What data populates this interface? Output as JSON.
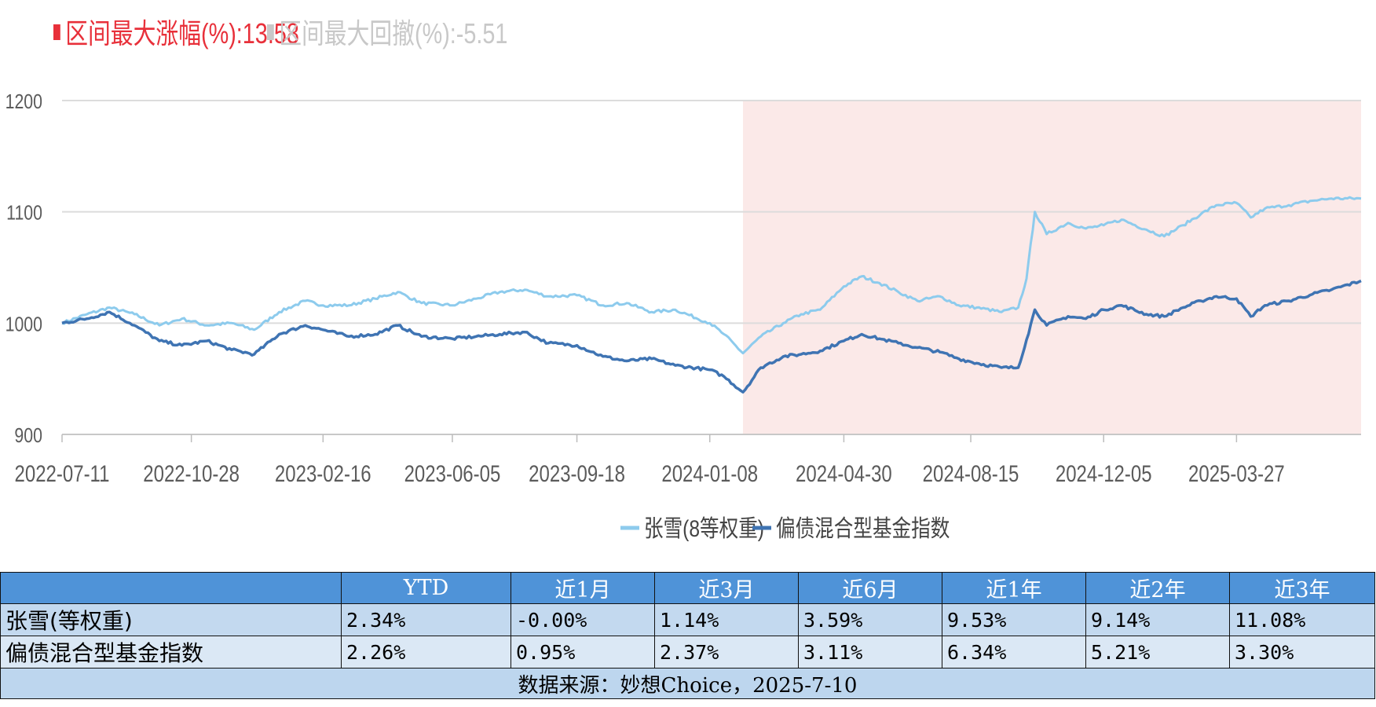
{
  "stats": {
    "max_rise_label": "区间最大涨幅(%):13.58",
    "max_drawdown_label": "区间最大回撤(%):-5.51",
    "max_rise_color": "#e8303a",
    "max_drawdown_color": "#c8c8c8"
  },
  "chart_data": {
    "type": "line",
    "title": "",
    "xlabel": "",
    "ylabel": "",
    "ylim": [
      900,
      1200
    ],
    "yticks": [
      "900",
      "1000",
      "1100",
      "1200"
    ],
    "xticks": [
      "2022-07-11",
      "2022-10-28",
      "2023-02-16",
      "2023-06-05",
      "2023-09-18",
      "2024-01-08",
      "2024-04-30",
      "2024-08-15",
      "2024-12-05",
      "2025-03-27"
    ],
    "x_range": [
      "2022-07-11",
      "2025-07-10"
    ],
    "grid": "horizontal",
    "legend_position": "bottom",
    "highlight_region": {
      "from": "2024-02-05",
      "to": "2025-07-10",
      "color": "#fbe9e8"
    },
    "series": [
      {
        "name": "张雪(8等权重)",
        "color": "#8dcbed",
        "points": [
          [
            "2022-07-11",
            1000
          ],
          [
            "2022-08-01",
            1008
          ],
          [
            "2022-08-20",
            1014
          ],
          [
            "2022-09-10",
            1008
          ],
          [
            "2022-10-01",
            998
          ],
          [
            "2022-10-20",
            1004
          ],
          [
            "2022-11-10",
            998
          ],
          [
            "2022-12-01",
            1000
          ],
          [
            "2022-12-20",
            994
          ],
          [
            "2023-01-10",
            1010
          ],
          [
            "2023-02-01",
            1020
          ],
          [
            "2023-02-16",
            1016
          ],
          [
            "2023-03-10",
            1016
          ],
          [
            "2023-04-01",
            1022
          ],
          [
            "2023-04-20",
            1028
          ],
          [
            "2023-05-10",
            1018
          ],
          [
            "2023-06-05",
            1016
          ],
          [
            "2023-06-25",
            1022
          ],
          [
            "2023-07-15",
            1028
          ],
          [
            "2023-08-05",
            1030
          ],
          [
            "2023-08-25",
            1024
          ],
          [
            "2023-09-18",
            1025
          ],
          [
            "2023-10-10",
            1016
          ],
          [
            "2023-10-30",
            1018
          ],
          [
            "2023-11-20",
            1010
          ],
          [
            "2023-12-10",
            1012
          ],
          [
            "2024-01-08",
            1000
          ],
          [
            "2024-01-20",
            990
          ],
          [
            "2024-02-05",
            973
          ],
          [
            "2024-02-20",
            988
          ],
          [
            "2024-03-10",
            1000
          ],
          [
            "2024-03-25",
            1008
          ],
          [
            "2024-04-10",
            1012
          ],
          [
            "2024-04-30",
            1033
          ],
          [
            "2024-05-15",
            1042
          ],
          [
            "2024-05-30",
            1036
          ],
          [
            "2024-06-15",
            1028
          ],
          [
            "2024-07-01",
            1020
          ],
          [
            "2024-07-20",
            1024
          ],
          [
            "2024-08-05",
            1016
          ],
          [
            "2024-08-20",
            1014
          ],
          [
            "2024-09-10",
            1010
          ],
          [
            "2024-09-24",
            1014
          ],
          [
            "2024-10-01",
            1040
          ],
          [
            "2024-10-08",
            1100
          ],
          [
            "2024-10-18",
            1080
          ],
          [
            "2024-11-05",
            1090
          ],
          [
            "2024-11-20",
            1085
          ],
          [
            "2024-12-05",
            1088
          ],
          [
            "2024-12-20",
            1093
          ],
          [
            "2025-01-10",
            1084
          ],
          [
            "2025-01-25",
            1078
          ],
          [
            "2025-02-10",
            1088
          ],
          [
            "2025-02-25",
            1098
          ],
          [
            "2025-03-10",
            1106
          ],
          [
            "2025-03-27",
            1108
          ],
          [
            "2025-04-08",
            1095
          ],
          [
            "2025-04-20",
            1103
          ],
          [
            "2025-05-10",
            1106
          ],
          [
            "2025-05-30",
            1110
          ],
          [
            "2025-06-15",
            1112
          ],
          [
            "2025-07-10",
            1112
          ]
        ]
      },
      {
        "name": "偏债混合型基金指数",
        "color": "#3f74b3",
        "points": [
          [
            "2022-07-11",
            1000
          ],
          [
            "2022-08-01",
            1004
          ],
          [
            "2022-08-20",
            1010
          ],
          [
            "2022-09-10",
            998
          ],
          [
            "2022-10-01",
            984
          ],
          [
            "2022-10-20",
            980
          ],
          [
            "2022-11-10",
            984
          ],
          [
            "2022-12-01",
            976
          ],
          [
            "2022-12-20",
            972
          ],
          [
            "2023-01-10",
            990
          ],
          [
            "2023-02-01",
            998
          ],
          [
            "2023-02-16",
            994
          ],
          [
            "2023-03-10",
            988
          ],
          [
            "2023-04-01",
            990
          ],
          [
            "2023-04-20",
            998
          ],
          [
            "2023-05-10",
            988
          ],
          [
            "2023-06-05",
            986
          ],
          [
            "2023-06-25",
            988
          ],
          [
            "2023-07-15",
            990
          ],
          [
            "2023-08-05",
            992
          ],
          [
            "2023-08-25",
            982
          ],
          [
            "2023-09-18",
            980
          ],
          [
            "2023-10-10",
            970
          ],
          [
            "2023-10-30",
            966
          ],
          [
            "2023-11-20",
            968
          ],
          [
            "2023-12-10",
            962
          ],
          [
            "2024-01-08",
            958
          ],
          [
            "2024-01-20",
            952
          ],
          [
            "2024-02-05",
            938
          ],
          [
            "2024-02-20",
            960
          ],
          [
            "2024-03-10",
            970
          ],
          [
            "2024-03-25",
            972
          ],
          [
            "2024-04-10",
            975
          ],
          [
            "2024-04-30",
            984
          ],
          [
            "2024-05-15",
            990
          ],
          [
            "2024-05-30",
            986
          ],
          [
            "2024-06-15",
            982
          ],
          [
            "2024-07-01",
            978
          ],
          [
            "2024-07-20",
            974
          ],
          [
            "2024-08-05",
            968
          ],
          [
            "2024-08-20",
            964
          ],
          [
            "2024-09-10",
            960
          ],
          [
            "2024-09-24",
            960
          ],
          [
            "2024-10-01",
            985
          ],
          [
            "2024-10-08",
            1012
          ],
          [
            "2024-10-18",
            998
          ],
          [
            "2024-11-05",
            1006
          ],
          [
            "2024-11-20",
            1004
          ],
          [
            "2024-12-05",
            1012
          ],
          [
            "2024-12-20",
            1016
          ],
          [
            "2025-01-10",
            1008
          ],
          [
            "2025-01-25",
            1006
          ],
          [
            "2025-02-10",
            1014
          ],
          [
            "2025-02-25",
            1020
          ],
          [
            "2025-03-10",
            1024
          ],
          [
            "2025-03-27",
            1022
          ],
          [
            "2025-04-08",
            1006
          ],
          [
            "2025-04-20",
            1016
          ],
          [
            "2025-05-10",
            1020
          ],
          [
            "2025-05-30",
            1026
          ],
          [
            "2025-06-15",
            1030
          ],
          [
            "2025-07-10",
            1038
          ]
        ]
      }
    ]
  },
  "table": {
    "headers": [
      "",
      "YTD",
      "近1月",
      "近3月",
      "近6月",
      "近1年",
      "近2年",
      "近3年"
    ],
    "rows": [
      {
        "name": "张雪(等权重)",
        "values": [
          "2.34%",
          "-0.00%",
          "1.14%",
          "3.59%",
          "9.53%",
          "9.14%",
          "11.08%"
        ]
      },
      {
        "name": "偏债混合型基金指数",
        "values": [
          "2.26%",
          "0.95%",
          "2.37%",
          "3.11%",
          "6.34%",
          "5.21%",
          "3.30%"
        ]
      }
    ],
    "footer": "数据来源：妙想Choice，2025-7-10"
  }
}
